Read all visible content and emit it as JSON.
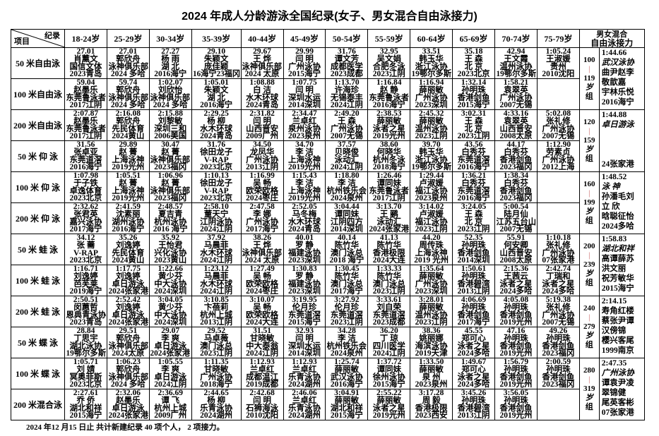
{
  "title": "2024 年成人分龄游泳全国纪录(女子、男女混合自由泳接力)",
  "header": {
    "corner_record": "纪录",
    "corner_item": "项目",
    "age_groups": [
      "18-24岁",
      "25-29岁",
      "30-34岁",
      "35-39岁",
      "40-44岁",
      "45-49岁",
      "50-54岁",
      "55-59岁",
      "60-64岁",
      "65-69岁",
      "70-74岁",
      "75-79岁"
    ],
    "relay_line1": "男女混合",
    "relay_line2": "自由泳接力"
  },
  "rows": [
    {
      "event": "50 米自由泳",
      "cells": [
        [
          "27.01",
          "肖薰文",
          "国信文体",
          "2023青岛"
        ],
        [
          "27.01",
          "郭欣舟",
          "泳神俱乐部",
          "2024 多哈"
        ],
        [
          "27.27",
          "杨 雨",
          "湖 北",
          "2016海宁"
        ],
        [
          "29.10",
          "朱颖文",
          "庞佳颖",
          "16海宁23福冈"
        ],
        [
          "29.67",
          "王 烨",
          "泳神俱乐部",
          "2024 太原"
        ],
        [
          "29.99",
          "闫 明",
          "广州泳协",
          "2015海宁"
        ],
        [
          "31.76",
          "谭文芳",
          "成都医学",
          "2023成都"
        ],
        [
          "32.95",
          "吴文娟",
          "合肥冬泳",
          "2023江阴"
        ],
        [
          "33.51",
          "韩玉华",
          "浙江泳协",
          "19鄂尔多斯"
        ],
        [
          "35.18",
          "王 森",
          "北 京",
          "2023北京"
        ],
        [
          "42.94",
          "王文霞",
          "温州泳协",
          "19鄂尔多斯"
        ],
        [
          "1:05.24",
          "王淑媛",
          "贵州",
          "2010沈阳"
        ]
      ]
    },
    {
      "event": "100 米自由泳",
      "cells": [
        [
          "59.04",
          "赵墨乐",
          "东莞鲁泳者",
          "2017江阴"
        ],
        [
          "59.74",
          "郭欣舟",
          "泳神俱乐部",
          "2024 多哈"
        ],
        [
          "1:02.07",
          "刘欣怡",
          "泳神俱乐部",
          "2024 多哈"
        ],
        [
          "1:05.01",
          "朱颖文",
          "湖 北",
          "2016海宁"
        ],
        [
          "1:08.88",
          "白 洁",
          "水木环球",
          "2024青岛"
        ],
        [
          "1:07.75",
          "闫 明",
          "深圳水运",
          "2014深圳"
        ],
        [
          "1:13.70",
          "许海珍",
          "无锡泰丰",
          "2024江阴"
        ],
        [
          "1:16.84",
          "赵 静",
          "东莞鲁泳者",
          "2016海宁"
        ],
        [
          "1:16.94",
          "薛丽敏",
          "广州泳协",
          "2023深圳"
        ],
        [
          "1:32.14",
          "孙明珠",
          "香港剑鱼",
          "2015海宁"
        ],
        [
          "1:58.21",
          "袁翠英",
          "广州泳协",
          "2007无锡"
        ],
        []
      ]
    },
    {
      "event": "200 米自由泳",
      "cells": [
        [
          "2:07.87",
          "赵墨乐",
          "东莞鲁泳者",
          "2017江阴"
        ],
        [
          "2:16.08",
          "郭欣舟",
          "先民体育",
          "2024黄山"
        ],
        [
          "2:15.88",
          "刘黎敏",
          "深圳三和",
          "2006美国"
        ],
        [
          "2:29.25",
          "杨 柳",
          "水木环球",
          "2024青岛"
        ],
        [
          "2:31.82",
          "闫 明",
          "山西晋安",
          "2009广州"
        ],
        [
          "2:34.47",
          "兰卓红",
          "泉州泳协",
          "2023泉州"
        ],
        [
          "2:49.20",
          "王 森",
          "广州泳协",
          "2007无锡"
        ],
        [
          "2:38.53",
          "薛丽敏",
          "泳者之星",
          "2019光州"
        ],
        [
          "2:45.32",
          "薛丽敏",
          "温州泳协",
          "2023江阴"
        ],
        [
          "3:02.31",
          "王 森",
          "北 京",
          "2023江阴"
        ],
        [
          "4:33.16",
          "袁翠英",
          "山西晋安",
          "2008太原"
        ],
        [
          "5:02.08",
          "张礼修",
          "广州泳协",
          "2007无锡"
        ]
      ]
    },
    {
      "event": "50 米 仰 泳",
      "cells": [
        [
          "31.56",
          "张卓亚",
          "东莞道滘",
          "2016海宁"
        ],
        [
          "29.89",
          "赵 菁",
          "上海泳神",
          "2019光州"
        ],
        [
          "30.47",
          "赵 菁",
          "泳神俱乐部",
          "2023福冈"
        ],
        [
          "31.76",
          "徐田龙子",
          "V-RAP",
          "2023北京"
        ],
        [
          "34.50",
          "龙凤华",
          "广州泳协",
          "2013江阴"
        ],
        [
          "34.70",
          "李 洁",
          "上海泳神",
          "2019光州"
        ],
        [
          "37.57",
          "贝晓俊",
          "泳动汇",
          "2024江阴"
        ],
        [
          "38.60",
          "何晓华",
          "杭州冬泳",
          "2018海宁"
        ],
        [
          "39.70",
          "韩玉华",
          "浙江泳协",
          "19鄂尔多斯"
        ],
        [
          "43.56",
          "白秀芬",
          "东莞道滘",
          "2016海宁"
        ],
        [
          "44.17",
          "白秀芬",
          "香港剑鱼",
          "2023福冈"
        ],
        [
          "1:12.90",
          "劳素贞",
          "广州泳协",
          "2012上海"
        ]
      ]
    },
    {
      "event": "100 米 仰 泳",
      "cells": [
        [
          "1:07.98",
          "于子铁",
          "卓逸体育",
          "2023北京"
        ],
        [
          "1:05.51",
          "赵 菁",
          "上海泳神",
          "2019光州"
        ],
        [
          "1:06.96",
          "赵 菁",
          "泳神俱乐部",
          "2023福冈"
        ],
        [
          "1:10.13",
          "徐田龙子",
          "V-RAP",
          "2023北京"
        ],
        [
          "1:16.99",
          "吴 畅",
          "欧荣欧格",
          "2024枣庄"
        ],
        [
          "1:15.43",
          "李 洁",
          "上海泳神",
          "2019光州"
        ],
        [
          "1:18.80",
          "李 洁",
          "杭州铁乐会",
          "2024泉州"
        ],
        [
          "1:26.46",
          "谭同妹",
          "东莞鲁泳者",
          "2017江阴"
        ],
        [
          "1:29.44",
          "卢淑媛",
          "福江泳协",
          "2023泉州"
        ],
        [
          "1:36.21",
          "白秀芬",
          "东莞道滘",
          "2016海宁"
        ],
        [
          "1:38.34",
          "白秀芬",
          "香港剑鱼",
          "2023福冈"
        ],
        []
      ]
    },
    {
      "event": "200 米 仰 泳",
      "cells": [
        [
          "2:32.62",
          "张君英",
          "嘉兴泳协",
          "2017海宁"
        ],
        [
          "2:41.59",
          "沈素丽",
          "湖州泳协",
          "2016海宁"
        ],
        [
          "2:48.57",
          "夏吉青",
          "杭州泳协",
          "2016 海宁"
        ],
        [
          "2:58.10",
          "董天宁",
          "江阴泳协",
          "2024江阴"
        ],
        [
          "2:47.58",
          "李 娜",
          "广州泳协",
          "2017海宁"
        ],
        [
          "2:52.05",
          "马冬梅",
          "水木环球",
          "2024青岛"
        ],
        [
          "3:04.44",
          "谭同妹",
          "江阴四方",
          "2014深圳"
        ],
        [
          "3:13.70",
          "王 鹂",
          "泳动汇",
          "2024张家港"
        ],
        [
          "3:14.02",
          "卢淑媛",
          "福江泳协",
          "2023江阴"
        ],
        [
          "3:24.05",
          "王 森",
          "北 京",
          "2023江阴"
        ],
        [
          "5:00.54",
          "陆月仙",
          "江苏五台山",
          "2007无锡"
        ],
        []
      ]
    },
    {
      "event": "50 米 蛙 泳",
      "cells": [
        [
          "34.12",
          "张 薷",
          "V-RAP",
          "2023北京"
        ],
        [
          "35.26",
          "刘逸婷",
          "先民体育",
          "2024黄山"
        ],
        [
          "35.92",
          "王怡君",
          "兴化泳协",
          "2023黄山"
        ],
        [
          "37.92",
          "马晨菲",
          "水木环球",
          "2024江阴"
        ],
        [
          "38.26",
          "王 烨",
          "泳神俱乐部",
          "2024 太原"
        ],
        [
          "40.01",
          "罗 静",
          "福建泳协",
          "2023深圳"
        ],
        [
          "40.14",
          "陈竹华",
          "澳门泳总",
          "2018 海宁"
        ],
        [
          "41.13",
          "陈竹华",
          "香港极限",
          "2024大连"
        ],
        [
          "44.20",
          "周传珠",
          "上海泳神",
          "2019 光州"
        ],
        [
          "52.35",
          "孙明珠",
          "香港剑鱼",
          "2014深圳"
        ],
        [
          "55.91",
          "何安卿",
          "山西晋安",
          "2008太原"
        ],
        [
          "1:10.18",
          "张礼修",
          "广州泳协",
          "07张家港"
        ]
      ]
    },
    {
      "event": "100 米 蛙 泳",
      "cells": [
        [
          "1:16.71",
          "刘逸婷",
          "芭芙莱",
          "2019海宁"
        ],
        [
          "1:17.75",
          "刘逸婷",
          "卓日游泳",
          "2024张家港"
        ],
        [
          "1:22.66",
          "黄少芬",
          "中大泳协",
          "2024深圳"
        ],
        [
          "1:23.12",
          "马晨菲",
          "水木环球",
          "2024江阴"
        ],
        [
          "1:27.49",
          "吴 畅",
          "欧荣欧格",
          "2024枣庄"
        ],
        [
          "1:30.83",
          "罗 静",
          "福建泳协",
          "2023深圳"
        ],
        [
          "1:30.45",
          "陈竹华",
          "澳门泳总",
          "2017海宁"
        ],
        [
          "1:33.33",
          "陈竹华",
          "澳门泳总",
          "2023江阴"
        ],
        [
          "1:35.64",
          "薛丽敏",
          "广州泳协",
          "2023深圳"
        ],
        [
          "1:50.61",
          "孙明珠",
          "香港碧湾",
          "2013江阴"
        ],
        [
          "2:15.36",
          "王茜云",
          "泳者之星",
          "2024多哈"
        ],
        [
          "2:42.74",
          "丁瑞和",
          "泳者之星",
          "2024多哈"
        ]
      ]
    },
    {
      "event": "200 米 蛙 泳",
      "cells": [
        [
          "2:50.51",
          "闵蕙哲",
          "恩典青泳协",
          "2023青岛"
        ],
        [
          "2:52.42",
          "刘逸婷",
          "卓日游泳",
          "2024张家港"
        ],
        [
          "3:04.05",
          "黄少芬",
          "中大泳协",
          "2024深圳"
        ],
        [
          "3:10.85",
          "卞蓓莉",
          "杭州上城",
          "2013江阴"
        ],
        [
          "3:10.07",
          "吴 畅",
          "欧荣欧格",
          "2024大连"
        ],
        [
          "3:19.95",
          "伦月珍",
          "东莞道滘",
          "2015海宁"
        ],
        [
          "3:27.92",
          "伦月珍",
          "东莞道滘",
          "2023江阴"
        ],
        [
          "3:33.61",
          "刘自荣",
          "东莞道滘",
          "2023成都"
        ],
        [
          "3:28.01",
          "薛丽敏",
          "温州泳协",
          "2023江阴"
        ],
        [
          "4:06.69",
          "孙明珠",
          "香港剑鱼",
          "2017海宁"
        ],
        [
          "4:05.08",
          "孙明珠",
          "香港剑鱼",
          "2019光州"
        ],
        [
          "5:19.38",
          "张礼修",
          "广州泳协",
          "2007无锡"
        ]
      ]
    },
    {
      "event": "50 米 蝶 泳",
      "cells": [
        [
          "28.84",
          "丁思宇",
          "湖北泳协",
          "19鄂尔多斯"
        ],
        [
          "29.51",
          "郭欣舟",
          "泳神俱乐部",
          "2024太原"
        ],
        [
          "29.07",
          "李 爽",
          "卓日游泳",
          "2024张家港"
        ],
        [
          "29.52",
          "马卓薇",
          "澳门泳总",
          "2023江阴"
        ],
        [
          "31.51",
          "甘晓敏",
          "中大泰翁",
          "2024江阴"
        ],
        [
          "32.93",
          "闫 明",
          "深圳水运",
          "2014深圳"
        ],
        [
          "34.28",
          "李 洁",
          "杭州铁乐会",
          "2024泉州"
        ],
        [
          "36.20",
          "丁 琼",
          "四川医学",
          "2024江阴"
        ],
        [
          "38.36",
          "姚丽娜",
          "海滨泳协",
          "2019天津"
        ],
        [
          "45.55",
          "郑可心",
          "泳者之星",
          "2024多哈"
        ],
        [
          "47.16",
          "孙明珠",
          "香港剑鱼",
          "2019光州"
        ],
        [
          "49.26",
          "孙明珠",
          "香港剑鱼",
          "2023福冈"
        ]
      ]
    },
    {
      "event": "100 米 蝶 泳",
      "cells": [
        [
          "1:05.71",
          "刘 婧",
          "冥奥菲斯",
          "2023北京"
        ],
        [
          "1:06.23",
          "郭欣舟",
          "泳神俱乐部",
          "2024 多哈"
        ],
        [
          "1:05.55",
          "李 爽",
          "卓日游泳",
          "2024江阴"
        ],
        [
          "1:11.35",
          "甘晓敏",
          "广州泳协",
          "2018海宁"
        ],
        [
          "1:12.93",
          "兰卓红",
          "成都温江",
          "2019成都"
        ],
        [
          "1:12.93",
          "兰卓红",
          "乐青泳协",
          "2024湖州"
        ],
        [
          "1:25.74",
          "薛丽敏",
          "武汉泳协",
          "2016海宁"
        ],
        [
          "1:37.72",
          "谭同妹",
          "徐州泳协",
          "2015海宁"
        ],
        [
          "1:33.50",
          "薛丽敏",
          "泉 州",
          "2023泉州"
        ],
        [
          "1:49.67",
          "郑可心",
          "泳者之星",
          "2024多哈"
        ],
        [
          "1:56.79",
          "孙明珠",
          "香港剑鱼",
          "2019光州"
        ],
        [
          "2:00.59",
          "孙明珠",
          "香港剑鱼",
          "2023福冈"
        ]
      ]
    },
    {
      "event": "200 米混合泳",
      "cells": [
        [
          "2:27.61",
          "乔 侨",
          "湖北和祥",
          "2015海宁"
        ],
        [
          "2:32.06",
          "赵墨乐",
          "卓日游泳",
          "2024张家港"
        ],
        [
          "2:36.69",
          "谭 飞",
          "杭州上城",
          "2009广州"
        ],
        [
          "2:44.65",
          "杨 柳",
          "乐青泳协",
          "2024湖州"
        ],
        [
          "2:42.68",
          "闫 明",
          "石狮海泳",
          "2010沈阳"
        ],
        [
          "2:46.06",
          "兰卓红",
          "乐青泳协",
          "2024湖州"
        ],
        [
          "3:04.91",
          "薛丽敏",
          "湖北和祥",
          "2015海宁"
        ],
        [
          "2:55.22",
          "薛丽敏",
          "泳者之星",
          "2019光州"
        ],
        [
          "3:17.28",
          "周 毅",
          "香港极限",
          "2023西安"
        ],
        [
          "3:45.26",
          "孙明珠",
          "香港碧湾",
          "2013江阴"
        ],
        [
          "3:56.05",
          "孙明珠",
          "香港剑鱼",
          "2019光州"
        ],
        []
      ]
    }
  ],
  "relays": [
    {
      "group": [
        "100",
        "119",
        "岁",
        "组"
      ],
      "lines": [
        "1:44.66",
        "武汉泳协",
        "曲尹赵李",
        "敬歆嘉",
        "宇林乐悦",
        "2016海宁"
      ],
      "italic": [
        1
      ]
    },
    {
      "group": [
        "120",
        "159",
        "岁",
        "组"
      ],
      "lines": [
        "1:44.88",
        "卓日游泳",
        "",
        "",
        "",
        "24张家港"
      ],
      "italic": [
        1
      ]
    },
    {
      "group": [
        "160",
        "199",
        "岁",
        "组"
      ],
      "lines": [
        "1:48.52",
        "泳 神",
        "孙潘毛刘",
        "立 欣",
        "晗聪征怡",
        "2024多哈"
      ],
      "italic": [
        1
      ]
    },
    {
      "group": [
        "200",
        "239",
        "岁",
        "组"
      ],
      "lines": [
        "1:58.83",
        "湖北和祥",
        "高谭薛苏",
        "洪文丽",
        "祝芳敏华",
        "2015海宁"
      ],
      "italic": [
        1
      ]
    },
    {
      "group": [
        "240",
        "279",
        "岁",
        "组"
      ],
      "lines": [
        "2:14.15",
        "寿角红楼",
        "蔡张尹谭",
        "汉傍锦",
        "樱兴客尾",
        "1999南京"
      ],
      "italic": []
    },
    {
      "group": [
        "280",
        "319",
        "岁",
        "组"
      ],
      "lines": [
        "2:47.35",
        "广州泳协",
        "谭袁尹凌",
        "翠锦健",
        "尾英客彬",
        "07张家港"
      ],
      "italic": [
        1
      ]
    }
  ],
  "group_separator": "|",
  "footnote": "2024 年12 月15 日止 共计新建纪录 40 项个人， 2 项接力。",
  "colors": {
    "separator": "#d58a8a",
    "border": "#000000"
  }
}
